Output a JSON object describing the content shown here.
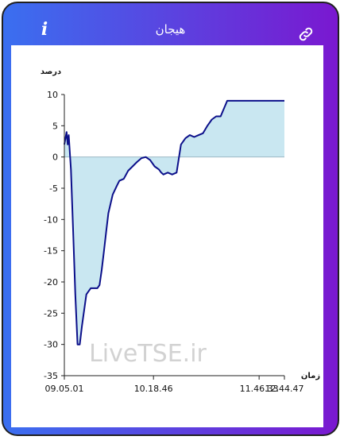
{
  "header": {
    "title": "هیجان",
    "info_icon": "info-icon",
    "link_icon": "link-icon"
  },
  "colors": {
    "gradient_left": "#3a6ff0",
    "gradient_right": "#7a18d0",
    "line": "#0b0f8a",
    "area": "#c9e7f1"
  },
  "watermark": "LiveTSE.ir",
  "chart_data": {
    "type": "area",
    "ylabel": "درصد",
    "xlabel": "زمان",
    "ylim": [
      -35,
      10
    ],
    "yticks": [
      "10",
      "5",
      "0",
      "-5",
      "-10",
      "-15",
      "-20",
      "-25",
      "-30",
      "-35"
    ],
    "xticks": [
      "09.05.01",
      "10.18.46",
      "11.46.33",
      "12.44.47"
    ],
    "x_minutes": [
      0,
      2,
      3,
      4,
      6,
      8,
      10,
      12,
      14,
      16,
      20,
      24,
      28,
      30,
      32,
      34,
      36,
      38,
      40,
      44,
      48,
      50,
      54,
      58,
      62,
      66,
      70,
      74,
      78,
      82,
      86,
      88,
      90,
      94,
      98,
      102,
      106,
      110,
      114,
      118,
      122,
      126,
      130,
      134,
      138,
      142,
      148,
      152,
      156,
      160,
      166,
      172,
      178,
      184,
      190,
      196,
      200
    ],
    "values": [
      2,
      4,
      2,
      3.5,
      -2,
      -12,
      -22,
      -30,
      -30,
      -27,
      -22,
      -21,
      -21,
      -21,
      -20.5,
      -18,
      -15,
      -12,
      -9,
      -6,
      -4.5,
      -3.8,
      -3.5,
      -2.2,
      -1.5,
      -0.8,
      -0.2,
      0,
      -0.5,
      -1.5,
      -2,
      -2.5,
      -2.8,
      -2.5,
      -2.8,
      -2.5,
      2,
      3,
      3.5,
      3.2,
      3.5,
      3.8,
      5,
      6,
      6.5,
      6.5,
      9,
      9,
      9,
      9,
      9,
      9,
      9,
      9,
      9,
      9,
      9
    ]
  }
}
